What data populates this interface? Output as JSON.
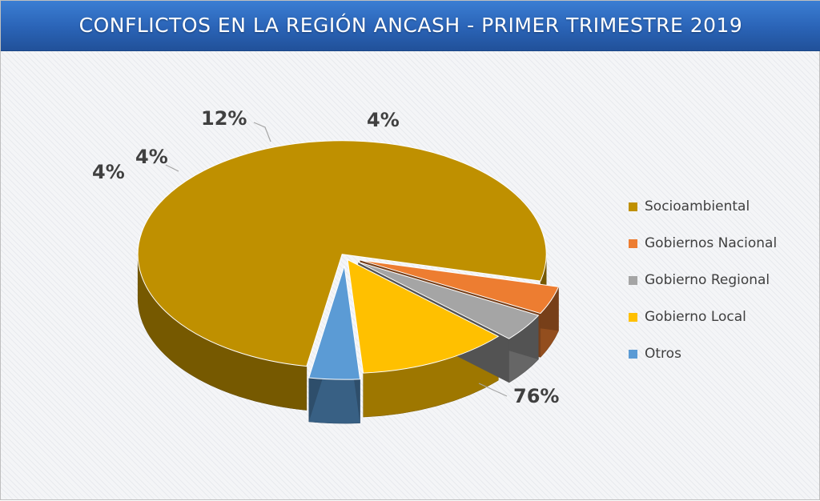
{
  "title": "CONFLICTOS EN LA REGIÓN ANCASH - PRIMER TRIMESTRE 2019",
  "chart_data": {
    "type": "pie",
    "title": "CONFLICTOS EN LA REGIÓN ANCASH - PRIMER TRIMESTRE 2019",
    "labels": [
      "Socioambiental",
      "Gobiernos Nacional",
      "Gobierno Regional",
      "Gobierno Local",
      "Otros"
    ],
    "values": [
      76,
      4,
      4,
      12,
      4
    ],
    "data_labels": [
      "76%",
      "4%",
      "4%",
      "12%",
      "4%"
    ],
    "colors": [
      "#bf9000",
      "#ed7d31",
      "#a5a5a5",
      "#ffc000",
      "#5b9bd5"
    ],
    "exploded": [
      false,
      true,
      true,
      false,
      true
    ],
    "legend": "right",
    "style": "3d"
  }
}
